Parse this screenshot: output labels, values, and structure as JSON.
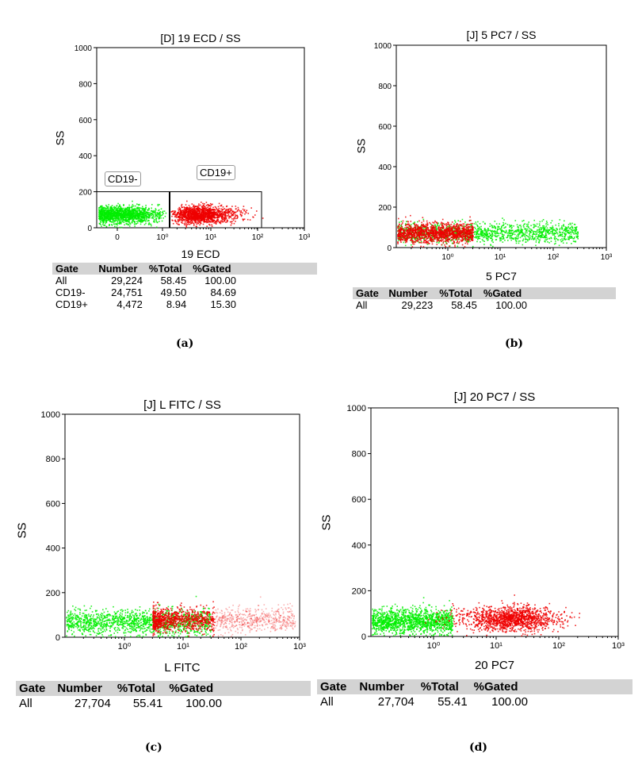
{
  "chart_data": [
    {
      "type": "scatter",
      "panel": "(a)",
      "title": "[D] 19 ECD / SS",
      "xlabel": "19 ECD",
      "ylabel": "SS",
      "x_ticks": [
        "0",
        "10⁰",
        "10¹",
        "10²",
        "10³"
      ],
      "y_ticks": [
        "0",
        "200",
        "400",
        "600",
        "800",
        "1000"
      ],
      "ylim": [
        0,
        1000
      ],
      "grid": false,
      "gates": [
        {
          "name": "CD19-",
          "x_range": [
            "-0.5",
            "10⁰"
          ],
          "y_range": [
            0,
            200
          ]
        },
        {
          "name": "CD19+",
          "x_range": [
            "10⁰",
            "10²"
          ],
          "y_range": [
            0,
            200
          ]
        }
      ],
      "series": [
        {
          "name": "CD19-",
          "color": "#00ee00",
          "x_center": 0.1,
          "y_center": 75,
          "y_spread": 40
        },
        {
          "name": "CD19+",
          "color": "#ee0000",
          "x_center": 10,
          "y_center": 75,
          "y_spread": 40
        }
      ],
      "stats": {
        "columns": [
          "Gate",
          "Number",
          "%Total",
          "%Gated"
        ],
        "rows": [
          [
            "All",
            "29,224",
            "58.45",
            "100.00"
          ],
          [
            "CD19-",
            "24,751",
            "49.50",
            "84.69"
          ],
          [
            "CD19+",
            "4,472",
            "8.94",
            "15.30"
          ]
        ]
      }
    },
    {
      "type": "scatter",
      "panel": "(b)",
      "title": "[J] 5 PC7 / SS",
      "xlabel": "5 PC7",
      "ylabel": "SS",
      "x_ticks": [
        "10⁰",
        "10¹",
        "10²",
        "10³"
      ],
      "y_ticks": [
        "0",
        "200",
        "400",
        "600",
        "800",
        "1000"
      ],
      "ylim": [
        0,
        1000
      ],
      "grid": false,
      "series": [
        {
          "color": "#00ee00",
          "x_range": [
            0.1,
            300
          ],
          "y_center": 75,
          "y_spread": 40
        },
        {
          "color": "#ee0000",
          "x_range": [
            0.1,
            3
          ],
          "y_center": 75,
          "y_spread": 40
        }
      ],
      "stats": {
        "columns": [
          "Gate",
          "Number",
          "%Total",
          "%Gated"
        ],
        "rows": [
          [
            "All",
            "29,223",
            "58.45",
            "100.00"
          ]
        ]
      }
    },
    {
      "type": "scatter",
      "panel": "(c)",
      "title": "[J] L FITC / SS",
      "xlabel": "L FITC",
      "ylabel": "SS",
      "x_ticks": [
        "10⁰",
        "10¹",
        "10²",
        "10³"
      ],
      "y_ticks": [
        "0",
        "200",
        "400",
        "600",
        "800",
        "1000"
      ],
      "ylim": [
        0,
        1000
      ],
      "grid": false,
      "series": [
        {
          "color": "#00ee00",
          "x_range": [
            0.1,
            30
          ],
          "y_center": 70,
          "y_spread": 45
        },
        {
          "color": "#ee0000",
          "x_range": [
            3,
            800
          ],
          "y_center": 80,
          "y_spread": 45
        }
      ],
      "stats": {
        "columns": [
          "Gate",
          "Number",
          "%Total",
          "%Gated"
        ],
        "rows": [
          [
            "All",
            "27,704",
            "55.41",
            "100.00"
          ]
        ]
      }
    },
    {
      "type": "scatter",
      "panel": "(d)",
      "title": "[J] 20 PC7 / SS",
      "xlabel": "20 PC7",
      "ylabel": "SS",
      "x_ticks": [
        "10⁰",
        "10¹",
        "10²",
        "10³"
      ],
      "y_ticks": [
        "0",
        "200",
        "400",
        "600",
        "800",
        "1000"
      ],
      "ylim": [
        0,
        1000
      ],
      "grid": false,
      "series": [
        {
          "color": "#00ee00",
          "x_range": [
            0.1,
            2
          ],
          "y_center": 70,
          "y_spread": 45
        },
        {
          "color": "#ee0000",
          "x_range": [
            5,
            300
          ],
          "y_center": 80,
          "y_spread": 45
        }
      ],
      "stats": {
        "columns": [
          "Gate",
          "Number",
          "%Total",
          "%Gated"
        ],
        "rows": [
          [
            "All",
            "27,704",
            "55.41",
            "100.00"
          ]
        ]
      }
    }
  ],
  "captions": [
    "(a)",
    "(b)",
    "(c)",
    "(d)"
  ],
  "colors": {
    "negative": "#00ee00",
    "positive": "#ee0000",
    "stats_header": "#d3d3d3"
  }
}
